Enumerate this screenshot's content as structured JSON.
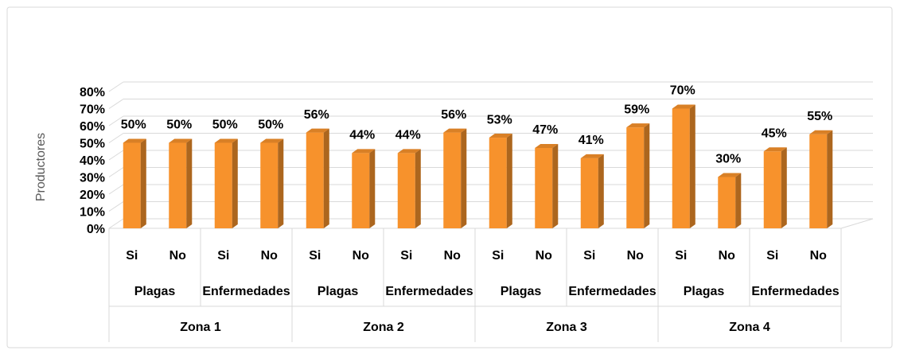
{
  "chart_data": {
    "type": "bar3d",
    "y_axis_label": "Productores",
    "categories": [
      "Si",
      "No",
      "Si",
      "No",
      "Si",
      "No",
      "Si",
      "No",
      "Si",
      "No",
      "Si",
      "No",
      "Si",
      "No",
      "Si",
      "No"
    ],
    "groups": [
      "Plagas",
      "Enfermedades",
      "Plagas",
      "Enfermedades",
      "Plagas",
      "Enfermedades",
      "Plagas",
      "Enfermedades"
    ],
    "zones": [
      "Zona 1",
      "Zona 2",
      "Zona 3",
      "Zona 4"
    ],
    "values": [
      50,
      50,
      50,
      50,
      56,
      44,
      44,
      56,
      53,
      47,
      41,
      59,
      70,
      30,
      45,
      55
    ],
    "value_labels": [
      "50%",
      "50%",
      "50%",
      "50%",
      "56%",
      "44%",
      "44%",
      "56%",
      "53%",
      "47%",
      "41%",
      "59%",
      "70%",
      "30%",
      "45%",
      "55%"
    ],
    "color": "#f7922c",
    "ylim": [
      0,
      80
    ],
    "yticks": [
      {
        "value": 0,
        "label": "0%"
      },
      {
        "value": 10,
        "label": "10%"
      },
      {
        "value": 20,
        "label": "20%"
      },
      {
        "value": 30,
        "label": "30%"
      },
      {
        "value": 40,
        "label": "40%"
      },
      {
        "value": 50,
        "label": "50%"
      },
      {
        "value": 60,
        "label": "60%"
      },
      {
        "value": 70,
        "label": "70%"
      },
      {
        "value": 80,
        "label": "80%"
      }
    ],
    "grid": true
  }
}
